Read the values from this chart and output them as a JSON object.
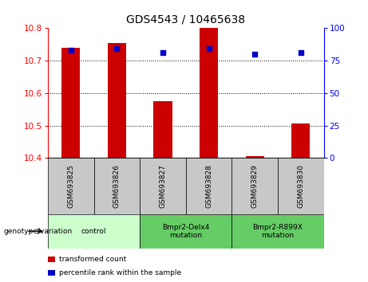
{
  "title": "GDS4543 / 10465638",
  "samples": [
    "GSM693825",
    "GSM693826",
    "GSM693827",
    "GSM693828",
    "GSM693829",
    "GSM693830"
  ],
  "transformed_counts": [
    10.74,
    10.755,
    10.575,
    10.8,
    10.405,
    10.505
  ],
  "percentile_ranks": [
    83,
    84,
    81,
    84,
    80,
    81
  ],
  "ylim_left": [
    10.4,
    10.8
  ],
  "ylim_right": [
    0,
    100
  ],
  "yticks_left": [
    10.4,
    10.5,
    10.6,
    10.7,
    10.8
  ],
  "yticks_right": [
    0,
    25,
    50,
    75,
    100
  ],
  "bar_color": "#cc0000",
  "scatter_color": "#0000cc",
  "bar_bottom": 10.4,
  "group_configs": [
    {
      "label": "control",
      "start": 0,
      "end": 1,
      "color": "#ccffcc"
    },
    {
      "label": "Bmpr2-Delx4\nmutation",
      "start": 2,
      "end": 3,
      "color": "#66cc66"
    },
    {
      "label": "Bmpr2-R899X\nmutation",
      "start": 4,
      "end": 5,
      "color": "#66cc66"
    }
  ],
  "genotype_label": "genotype/variation",
  "legend_items": [
    {
      "label": "transformed count",
      "color": "#cc0000"
    },
    {
      "label": "percentile rank within the sample",
      "color": "#0000cc"
    }
  ],
  "sample_label_bg": "#c8c8c8",
  "plot_bg": "#ffffff"
}
